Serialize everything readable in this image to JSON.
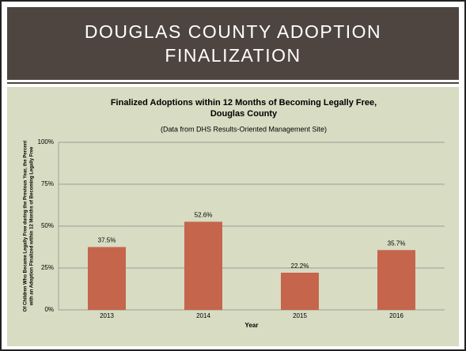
{
  "slide_title": "DOUGLAS COUNTY ADOPTION FINALIZATION",
  "chart_data": {
    "type": "bar",
    "title": [
      "Finalized Adoptions within 12 Months of Becoming Legally Free,",
      "Douglas County"
    ],
    "subtitle": "(Data from DHS Results-Oriented Management Site)",
    "xlabel": "Year",
    "ylabel": [
      "Of Children Who Became Legally Free during the Previous Year, the Percent",
      "with an Adoption Finalized within 12 Months of Becoming Legally Free"
    ],
    "categories": [
      "2013",
      "2014",
      "2015",
      "2016"
    ],
    "values": [
      37.5,
      52.6,
      22.2,
      35.7
    ],
    "value_labels": [
      "37.5%",
      "52.6%",
      "22.2%",
      "35.7%"
    ],
    "color": "#c5654c",
    "ylim": [
      0,
      100
    ],
    "yticks": [
      {
        "value": 0,
        "label": "0%"
      },
      {
        "value": 25,
        "label": "25%"
      },
      {
        "value": 50,
        "label": "50%"
      },
      {
        "value": 75,
        "label": "75%"
      },
      {
        "value": 100,
        "label": "100%"
      }
    ],
    "grid": true
  }
}
